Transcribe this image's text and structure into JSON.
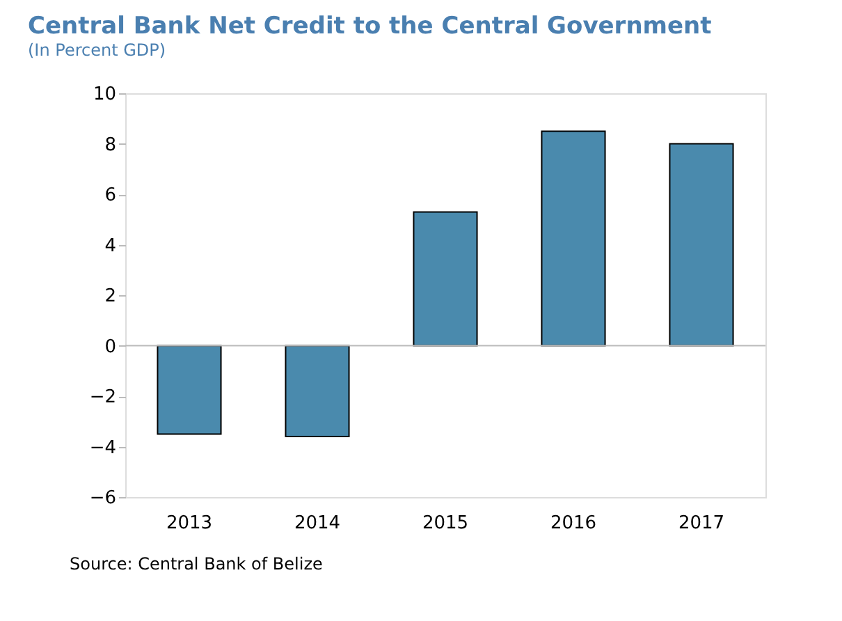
{
  "chart_data": {
    "type": "bar",
    "title": "Central Bank Net Credit to the Central Government",
    "subtitle": "(In Percent GDP)",
    "categories": [
      "2013",
      "2014",
      "2015",
      "2016",
      "2017"
    ],
    "values": [
      -3.5,
      -3.6,
      5.3,
      8.5,
      8.0
    ],
    "color": "#4a8aad",
    "ylim": [
      -6,
      10
    ],
    "yticks": [
      -6,
      -4,
      -2,
      0,
      2,
      4,
      6,
      8,
      10
    ],
    "annotations": [
      "Source: Central Bank of Belize"
    ]
  }
}
